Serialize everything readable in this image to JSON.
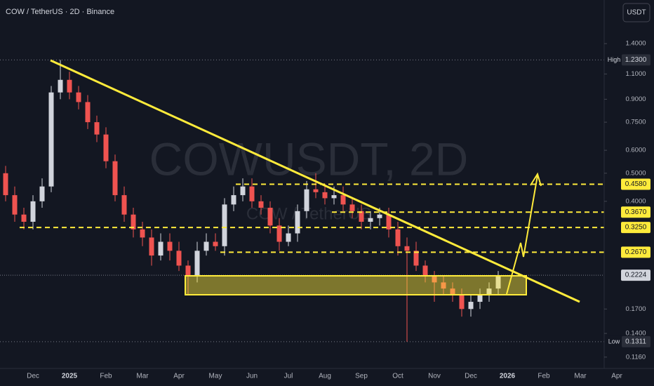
{
  "header": {
    "title": "COW / TetherUS · 2D · Binance",
    "currency": "USDT"
  },
  "chart_data": {
    "type": "candlestick",
    "watermark": "COWUSDT, 2D",
    "watermark_sub": "COW / TetherUS",
    "categories": [
      null,
      null,
      null,
      "Dec",
      null,
      null,
      null,
      "2025",
      null,
      null,
      null,
      "Feb",
      null,
      null,
      null,
      "Mar",
      null,
      null,
      null,
      "Apr",
      null,
      null,
      null,
      "May",
      null,
      null,
      null,
      "Jun",
      null,
      null,
      null,
      "Jul",
      null,
      null,
      null,
      "Aug",
      null,
      null,
      null,
      "Sep",
      null,
      null,
      null,
      "Oct",
      null,
      null,
      null,
      "Nov",
      null,
      null,
      null,
      "Dec",
      null,
      null,
      null,
      "2026",
      null,
      null,
      null,
      "Feb",
      null,
      null,
      null,
      "Mar",
      null,
      null,
      null,
      "Apr"
    ],
    "open": [
      0.5,
      0.42,
      0.36,
      0.34,
      0.4,
      0.45,
      0.95,
      1.05,
      0.95,
      0.88,
      0.75,
      0.68,
      0.55,
      0.42,
      0.36,
      0.32,
      0.3,
      0.26,
      0.29,
      0.27,
      0.24,
      0.22,
      0.27,
      0.29,
      0.28,
      0.39,
      0.42,
      0.45,
      0.4,
      0.38,
      0.33,
      0.29,
      0.31,
      0.37,
      0.44,
      0.43,
      0.41,
      0.42,
      0.39,
      0.37,
      0.34,
      0.35,
      0.36,
      0.32,
      0.28,
      0.27,
      0.24,
      0.22,
      0.21,
      0.2,
      0.19,
      0.17,
      0.18,
      0.19,
      0.2,
      null,
      null,
      null,
      null,
      null,
      null,
      null,
      null,
      null,
      null,
      null,
      null,
      null
    ],
    "high": [
      0.53,
      0.45,
      0.38,
      0.42,
      0.48,
      1.0,
      1.23,
      1.12,
      1.0,
      0.93,
      0.79,
      0.72,
      0.58,
      0.45,
      0.38,
      0.34,
      0.32,
      0.31,
      0.31,
      0.29,
      0.25,
      0.29,
      0.31,
      0.31,
      0.41,
      0.45,
      0.48,
      0.48,
      0.42,
      0.4,
      0.35,
      0.33,
      0.39,
      0.47,
      0.5,
      0.46,
      0.45,
      0.45,
      0.41,
      0.39,
      0.37,
      0.38,
      0.38,
      0.34,
      0.3,
      0.29,
      0.25,
      0.23,
      0.22,
      0.21,
      0.2,
      0.19,
      0.2,
      0.21,
      0.23,
      null,
      null,
      null,
      null,
      null,
      null,
      null,
      null,
      null,
      null,
      null,
      null,
      null
    ],
    "low": [
      0.4,
      0.34,
      0.32,
      0.32,
      0.38,
      0.43,
      0.9,
      0.9,
      0.83,
      0.71,
      0.64,
      0.52,
      0.4,
      0.34,
      0.3,
      0.28,
      0.24,
      0.25,
      0.25,
      0.23,
      0.19,
      0.21,
      0.26,
      0.27,
      0.26,
      0.37,
      0.4,
      0.38,
      0.36,
      0.31,
      0.27,
      0.28,
      0.29,
      0.35,
      0.41,
      0.39,
      0.39,
      0.37,
      0.35,
      0.32,
      0.32,
      0.33,
      0.3,
      0.26,
      0.1311,
      0.23,
      0.21,
      0.18,
      0.19,
      0.18,
      0.16,
      0.16,
      0.17,
      0.18,
      0.19,
      null,
      null,
      null,
      null,
      null,
      null,
      null,
      null,
      null,
      null,
      null,
      null,
      null
    ],
    "close": [
      0.42,
      0.36,
      0.34,
      0.4,
      0.45,
      0.95,
      1.05,
      0.95,
      0.88,
      0.75,
      0.68,
      0.55,
      0.42,
      0.36,
      0.32,
      0.3,
      0.26,
      0.29,
      0.27,
      0.24,
      0.22,
      0.27,
      0.29,
      0.28,
      0.39,
      0.42,
      0.45,
      0.4,
      0.38,
      0.33,
      0.29,
      0.31,
      0.37,
      0.44,
      0.43,
      0.41,
      0.42,
      0.39,
      0.37,
      0.34,
      0.35,
      0.36,
      0.32,
      0.28,
      0.27,
      0.24,
      0.22,
      0.21,
      0.2,
      0.19,
      0.17,
      0.18,
      0.19,
      0.2,
      0.2224,
      null,
      null,
      null,
      null,
      null,
      null,
      null,
      null,
      null,
      null,
      null,
      null,
      null
    ],
    "up_color": "#d1d4dc",
    "down_color": "#ef5350",
    "log_scale": true,
    "ylim": [
      0.106,
      1.98
    ],
    "yticks": [
      {
        "value": 1.4,
        "label": "1.4000"
      },
      {
        "value": 1.1,
        "label": "1.1000"
      },
      {
        "value": 0.9,
        "label": "0.9000"
      },
      {
        "value": 0.75,
        "label": "0.7500"
      },
      {
        "value": 0.6,
        "label": "0.6000"
      },
      {
        "value": 0.5,
        "label": "0.5000"
      },
      {
        "value": 0.4,
        "label": "0.4000"
      },
      {
        "value": 0.17,
        "label": "0.1700"
      },
      {
        "value": 0.14,
        "label": "0.1400"
      },
      {
        "value": 0.116,
        "label": "0.1160"
      }
    ],
    "levels": [
      {
        "value": 0.458,
        "label": "0.4580"
      },
      {
        "value": 0.367,
        "label": "0.3670"
      },
      {
        "value": 0.325,
        "label": "0.3250"
      },
      {
        "value": 0.267,
        "label": "0.2670"
      }
    ],
    "level_color": "#ffeb3b",
    "high_marker": {
      "name": "High",
      "value": 1.23,
      "label": "1.2300"
    },
    "low_marker": {
      "name": "Low",
      "value": 0.1311,
      "label": "0.1311"
    },
    "last_price": {
      "value": 0.2224,
      "label": "0.2224"
    }
  }
}
